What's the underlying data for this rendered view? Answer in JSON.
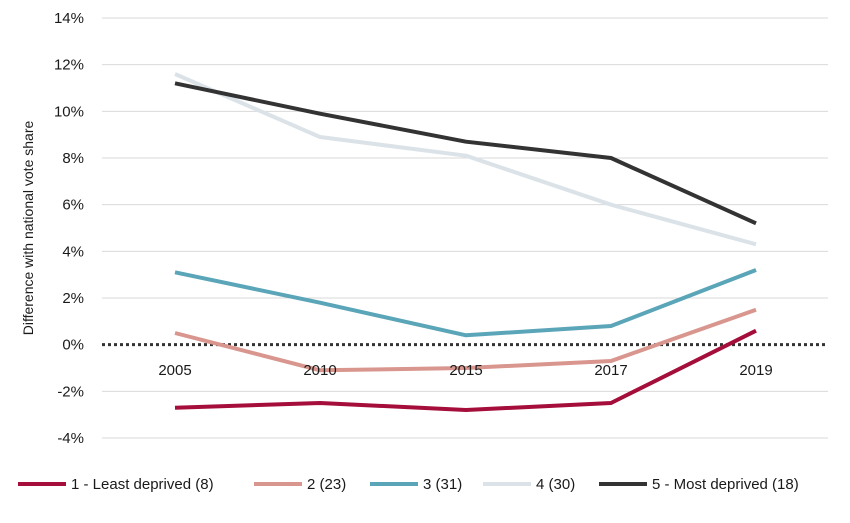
{
  "chart_data": {
    "type": "line",
    "title": "",
    "xlabel": "",
    "ylabel": "Difference with national vote share",
    "categories": [
      "2005",
      "2010",
      "2015",
      "2017",
      "2019"
    ],
    "ylim": [
      -4,
      14
    ],
    "yticks": [
      -4,
      -2,
      0,
      2,
      4,
      6,
      8,
      10,
      12,
      14
    ],
    "ytick_labels": [
      "-4%",
      "-2%",
      "0%",
      "2%",
      "4%",
      "6%",
      "8%",
      "10%",
      "12%",
      "14%"
    ],
    "grid": true,
    "zero_line": "dotted",
    "legend_position": "bottom",
    "series": [
      {
        "name": "1 - Least deprived (8)",
        "color": "#a50d3b",
        "values": [
          -2.7,
          -2.5,
          -2.8,
          -2.5,
          0.6
        ]
      },
      {
        "name": "2 (23)",
        "color": "#d9968e",
        "values": [
          0.5,
          -1.1,
          -1.0,
          -0.7,
          1.5
        ]
      },
      {
        "name": "3 (31)",
        "color": "#5ba5b8",
        "values": [
          3.1,
          1.8,
          0.4,
          0.8,
          3.2
        ]
      },
      {
        "name": "4 (30)",
        "color": "#dbe3e8",
        "values": [
          11.6,
          8.9,
          8.1,
          6.0,
          4.3
        ]
      },
      {
        "name": "5 - Most deprived (18)",
        "color": "#333333",
        "values": [
          11.2,
          9.9,
          8.7,
          8.0,
          5.2
        ]
      }
    ]
  }
}
